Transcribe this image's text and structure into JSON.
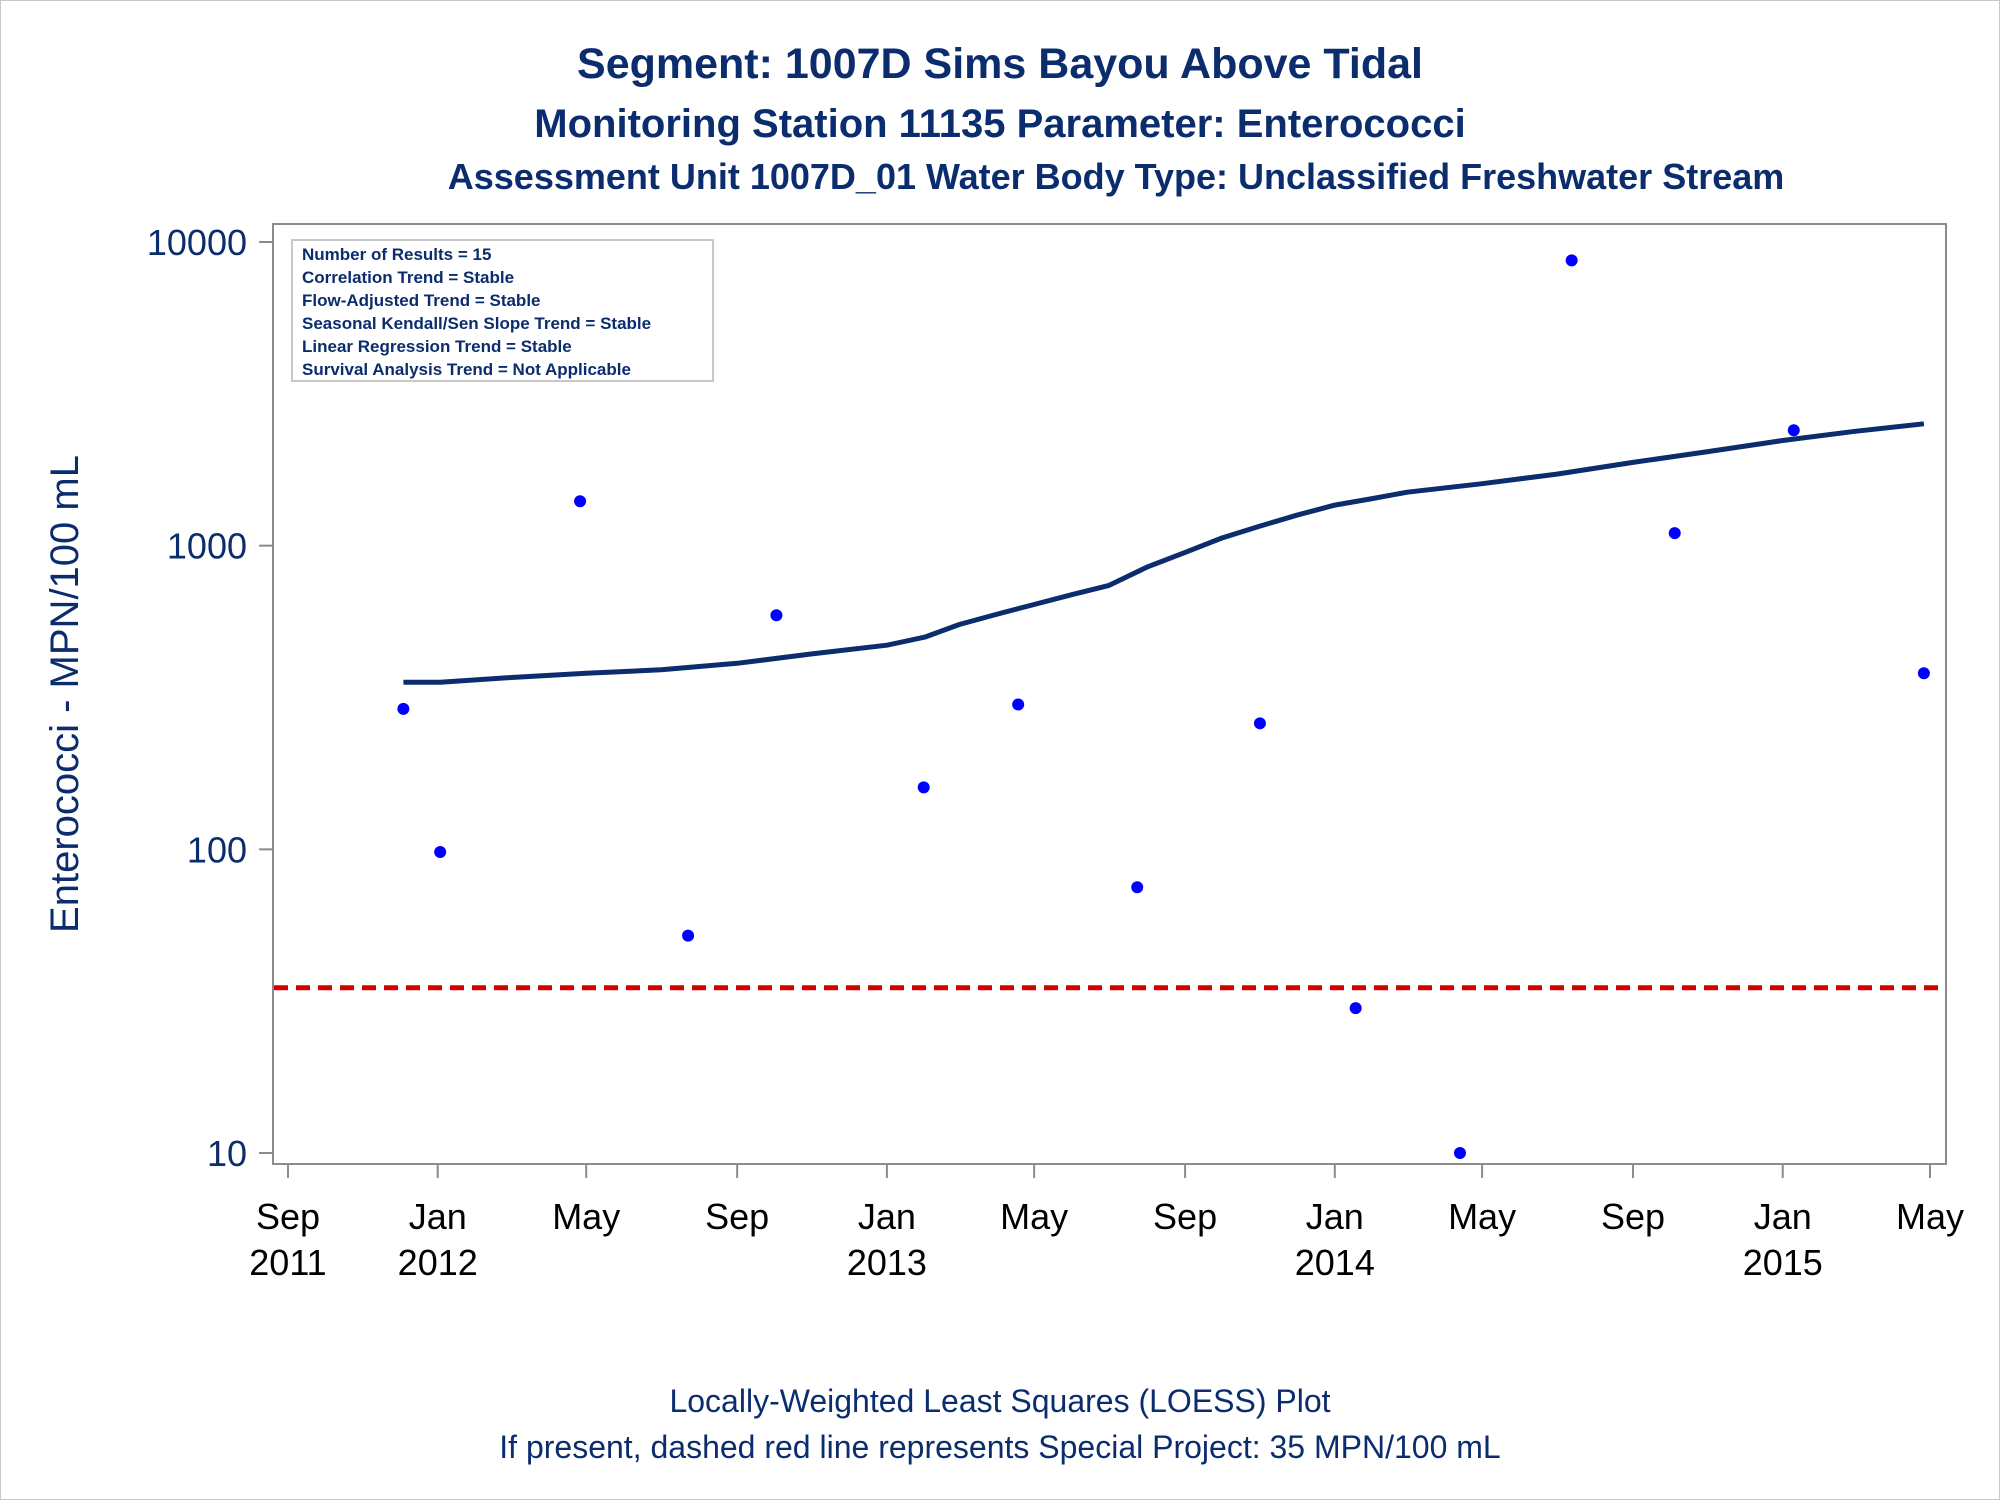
{
  "chart_data": {
    "type": "scatter",
    "title": "Segment: 1007D  Sims Bayou Above Tidal",
    "subtitle": "Monitoring Station 11135 Parameter: Enterococci",
    "subtitle2": "Assessment Unit 1007D_01   Water Body Type: Unclassified Freshwater Stream",
    "ylabel": "Enterococci - MPN/100 mL",
    "xlabel": "",
    "y_scale": "log",
    "ylim": [
      10,
      10000
    ],
    "yticks": [
      {
        "value": 10,
        "label": "10"
      },
      {
        "value": 100,
        "label": "100"
      },
      {
        "value": 1000,
        "label": "1000"
      },
      {
        "value": 10000,
        "label": "10000"
      }
    ],
    "xlim": [
      "2011-09-01",
      "2015-05-01"
    ],
    "xticks": [
      {
        "date": "2011-09-01",
        "month": "Sep",
        "year": "2011"
      },
      {
        "date": "2012-01-01",
        "month": "Jan",
        "year": "2012"
      },
      {
        "date": "2012-05-01",
        "month": "May",
        "year": ""
      },
      {
        "date": "2012-09-01",
        "month": "Sep",
        "year": ""
      },
      {
        "date": "2013-01-01",
        "month": "Jan",
        "year": "2013"
      },
      {
        "date": "2013-05-01",
        "month": "May",
        "year": ""
      },
      {
        "date": "2013-09-01",
        "month": "Sep",
        "year": ""
      },
      {
        "date": "2014-01-01",
        "month": "Jan",
        "year": "2014"
      },
      {
        "date": "2014-05-01",
        "month": "May",
        "year": ""
      },
      {
        "date": "2014-09-01",
        "month": "Sep",
        "year": ""
      },
      {
        "date": "2015-01-01",
        "month": "Jan",
        "year": "2015"
      },
      {
        "date": "2015-05-01",
        "month": "May",
        "year": ""
      }
    ],
    "points": [
      {
        "date": "2011-12-04",
        "value": 290
      },
      {
        "date": "2012-01-03",
        "value": 98
      },
      {
        "date": "2012-04-26",
        "value": 1400
      },
      {
        "date": "2012-07-23",
        "value": 52
      },
      {
        "date": "2012-10-03",
        "value": 590
      },
      {
        "date": "2013-01-31",
        "value": 160
      },
      {
        "date": "2013-04-18",
        "value": 300
      },
      {
        "date": "2013-07-24",
        "value": 75
      },
      {
        "date": "2013-11-01",
        "value": 260
      },
      {
        "date": "2014-01-18",
        "value": 30
      },
      {
        "date": "2014-04-13",
        "value": 10
      },
      {
        "date": "2014-07-13",
        "value": 8700
      },
      {
        "date": "2014-10-05",
        "value": 1100
      },
      {
        "date": "2015-01-10",
        "value": 2400
      },
      {
        "date": "2015-04-26",
        "value": 380
      }
    ],
    "loess": [
      {
        "date": "2011-12-04",
        "value": 355
      },
      {
        "date": "2012-01-03",
        "value": 355
      },
      {
        "date": "2012-03-01",
        "value": 368
      },
      {
        "date": "2012-05-01",
        "value": 380
      },
      {
        "date": "2012-07-01",
        "value": 390
      },
      {
        "date": "2012-09-01",
        "value": 410
      },
      {
        "date": "2012-11-01",
        "value": 440
      },
      {
        "date": "2013-01-01",
        "value": 470
      },
      {
        "date": "2013-02-01",
        "value": 500
      },
      {
        "date": "2013-03-01",
        "value": 550
      },
      {
        "date": "2013-04-01",
        "value": 595
      },
      {
        "date": "2013-05-01",
        "value": 640
      },
      {
        "date": "2013-06-01",
        "value": 690
      },
      {
        "date": "2013-07-01",
        "value": 740
      },
      {
        "date": "2013-08-01",
        "value": 850
      },
      {
        "date": "2013-09-01",
        "value": 950
      },
      {
        "date": "2013-10-01",
        "value": 1060
      },
      {
        "date": "2013-11-01",
        "value": 1160
      },
      {
        "date": "2013-12-01",
        "value": 1260
      },
      {
        "date": "2014-01-01",
        "value": 1360
      },
      {
        "date": "2014-02-01",
        "value": 1430
      },
      {
        "date": "2014-03-01",
        "value": 1500
      },
      {
        "date": "2014-05-01",
        "value": 1600
      },
      {
        "date": "2014-07-01",
        "value": 1720
      },
      {
        "date": "2014-09-01",
        "value": 1880
      },
      {
        "date": "2014-11-01",
        "value": 2040
      },
      {
        "date": "2015-01-01",
        "value": 2220
      },
      {
        "date": "2015-03-01",
        "value": 2380
      },
      {
        "date": "2015-04-26",
        "value": 2520
      }
    ],
    "reference_line": {
      "value": 35,
      "color": "#d40000",
      "style": "dashed"
    },
    "stats_box": [
      "Number of Results = 15",
      "Correlation Trend = Stable",
      "Flow-Adjusted Trend = Stable",
      "Seasonal Kendall/Sen Slope Trend = Stable",
      "Linear Regression Trend = Stable",
      "Survival Analysis Trend = Not Applicable"
    ],
    "footnotes": [
      "Locally-Weighted Least Squares (LOESS) Plot",
      "If present, dashed red line represents Special Project: 35 MPN/100 mL"
    ],
    "grid": false,
    "legend": "none",
    "colors": {
      "points": "#0000ff",
      "loess": "#0b2d6e",
      "reference": "#d40000",
      "text": "#0b2d6e",
      "axis": "#8c8c8c"
    }
  }
}
